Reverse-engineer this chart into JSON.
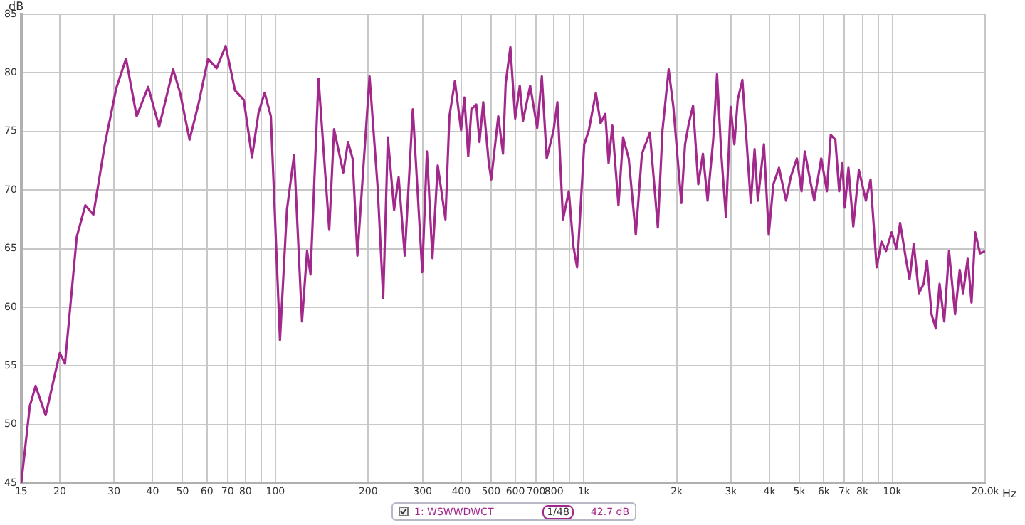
{
  "chart_data": {
    "type": "line",
    "xlabel": "Hz",
    "ylabel": "dB",
    "log": "x",
    "grid": true,
    "legend": "bottom",
    "marker": "none",
    "line_style": "solid",
    "xlim": [
      15,
      20000
    ],
    "ylim": [
      45,
      85
    ],
    "xticks": [
      15,
      20,
      30,
      40,
      50,
      60,
      70,
      80,
      {
        "value": 90,
        "label": null
      },
      100,
      200,
      300,
      400,
      500,
      600,
      700,
      800,
      {
        "value": 900,
        "label": null
      },
      {
        "value": 1000,
        "label": "1k"
      },
      {
        "value": 2000,
        "label": "2k"
      },
      {
        "value": 3000,
        "label": "3k"
      },
      {
        "value": 4000,
        "label": "4k"
      },
      {
        "value": 5000,
        "label": "5k"
      },
      {
        "value": 6000,
        "label": "6k"
      },
      {
        "value": 7000,
        "label": "7k"
      },
      {
        "value": 8000,
        "label": "8k"
      },
      {
        "value": 9000,
        "label": null
      },
      {
        "value": 10000,
        "label": "10k"
      },
      {
        "value": 20000,
        "label": "20.0k"
      }
    ],
    "yticks": [
      45,
      50,
      55,
      60,
      65,
      70,
      75,
      80,
      85
    ],
    "annotations": [
      "1/48",
      "42.7 dB"
    ],
    "series": [
      {
        "name": "1: WSWWDWCT",
        "color": "#a3288c",
        "x": [
          15,
          16,
          16.7,
          18,
          20,
          20.8,
          22.7,
          24.2,
          25.7,
          28,
          30.5,
          32.8,
          35.5,
          38.7,
          42,
          46.6,
          49.1,
          52.7,
          56.5,
          60.5,
          64.5,
          69,
          74,
          79,
          84,
          88.2,
          92.3,
          96.7,
          103.5,
          109,
          115,
          122,
          126.7,
          130,
          138,
          149.5,
          155,
          166,
          172,
          178,
          184.5,
          202,
          214.5,
          223.7,
          231.6,
          242.6,
          251,
          262.7,
          279,
          299.4,
          310,
          323,
          336,
          356,
          366.6,
          382,
          400,
          410,
          422,
          432,
          448,
          459,
          472,
          492,
          501,
          528,
          547,
          558,
          578,
          599,
          620,
          635,
          670,
          706,
          731,
          758,
          798,
          821,
          856,
          894,
          925,
          951,
          1003,
          1038,
          1094,
          1133,
          1174,
          1203,
          1237,
          1295,
          1341,
          1398,
          1474,
          1543,
          1637,
          1738,
          1799,
          1884,
          1951,
          2071,
          2129,
          2190,
          2260,
          2350,
          2433,
          2519,
          2627,
          2703,
          2790,
          2888,
          2993,
          3076,
          3154,
          3266,
          3478,
          3578,
          3666,
          3836,
          3976,
          4116,
          4293,
          4525,
          4684,
          4906,
          5079,
          5203,
          5392,
          5583,
          5885,
          6138,
          6315,
          6538,
          6726,
          6891,
          7016,
          7209,
          7473,
          7793,
          8212,
          8502,
          8897,
          9220,
          9546,
          9954,
          10306,
          10602,
          11060,
          11376,
          11741,
          12194,
          12640,
          12950,
          13405,
          13834,
          14235,
          14735,
          15274,
          15979,
          16544,
          16964,
          17564,
          18068,
          18570,
          19245,
          20000
        ],
        "values": [
          45,
          51.6,
          53.3,
          50.8,
          56.1,
          55.2,
          66,
          68.7,
          67.9,
          73.9,
          78.7,
          81.2,
          76.3,
          78.8,
          75.4,
          80.3,
          78.3,
          74.3,
          77.5,
          81.2,
          80.4,
          82.3,
          78.5,
          77.7,
          72.8,
          76.6,
          78.3,
          76.3,
          57.2,
          68.3,
          73,
          58.8,
          64.8,
          62.8,
          79.5,
          66.6,
          75.2,
          71.5,
          74.1,
          72.7,
          64.4,
          79.7,
          70.3,
          60.8,
          74.5,
          68.3,
          71.1,
          64.4,
          76.9,
          63,
          73.3,
          64.2,
          72.1,
          67.5,
          76.3,
          79.3,
          75.1,
          77.9,
          72.9,
          76.9,
          77.3,
          74.1,
          77.5,
          72.3,
          70.9,
          76.3,
          73.1,
          79.1,
          82.2,
          76.1,
          78.9,
          75.9,
          78.9,
          75.3,
          79.7,
          72.7,
          75.1,
          77.5,
          67.5,
          69.9,
          65.2,
          63.4,
          73.9,
          75.1,
          78.3,
          75.7,
          76.5,
          72.3,
          75.5,
          68.7,
          74.5,
          72.7,
          66.2,
          73.1,
          74.9,
          66.8,
          75.1,
          80.3,
          77.1,
          68.9,
          73.9,
          75.7,
          77.2,
          70.5,
          73.1,
          69.1,
          74.3,
          79.9,
          73.1,
          67.7,
          77.1,
          73.9,
          77.7,
          79.4,
          68.9,
          73.5,
          69.1,
          73.9,
          66.2,
          70.5,
          71.9,
          69.1,
          71.1,
          72.7,
          69.9,
          73.3,
          71.1,
          69.1,
          72.7,
          69.9,
          74.7,
          74.3,
          69.9,
          72.3,
          68.5,
          71.9,
          66.9,
          71.7,
          69.1,
          70.9,
          63.4,
          65.6,
          64.8,
          66.4,
          65,
          67.2,
          64.2,
          62.4,
          65.4,
          61.2,
          62,
          64,
          59.4,
          58.2,
          62,
          58.8,
          64.8,
          59.4,
          63.2,
          61.2,
          64.2,
          60.4,
          66.4,
          64.6,
          64.8
        ]
      }
    ]
  }
}
